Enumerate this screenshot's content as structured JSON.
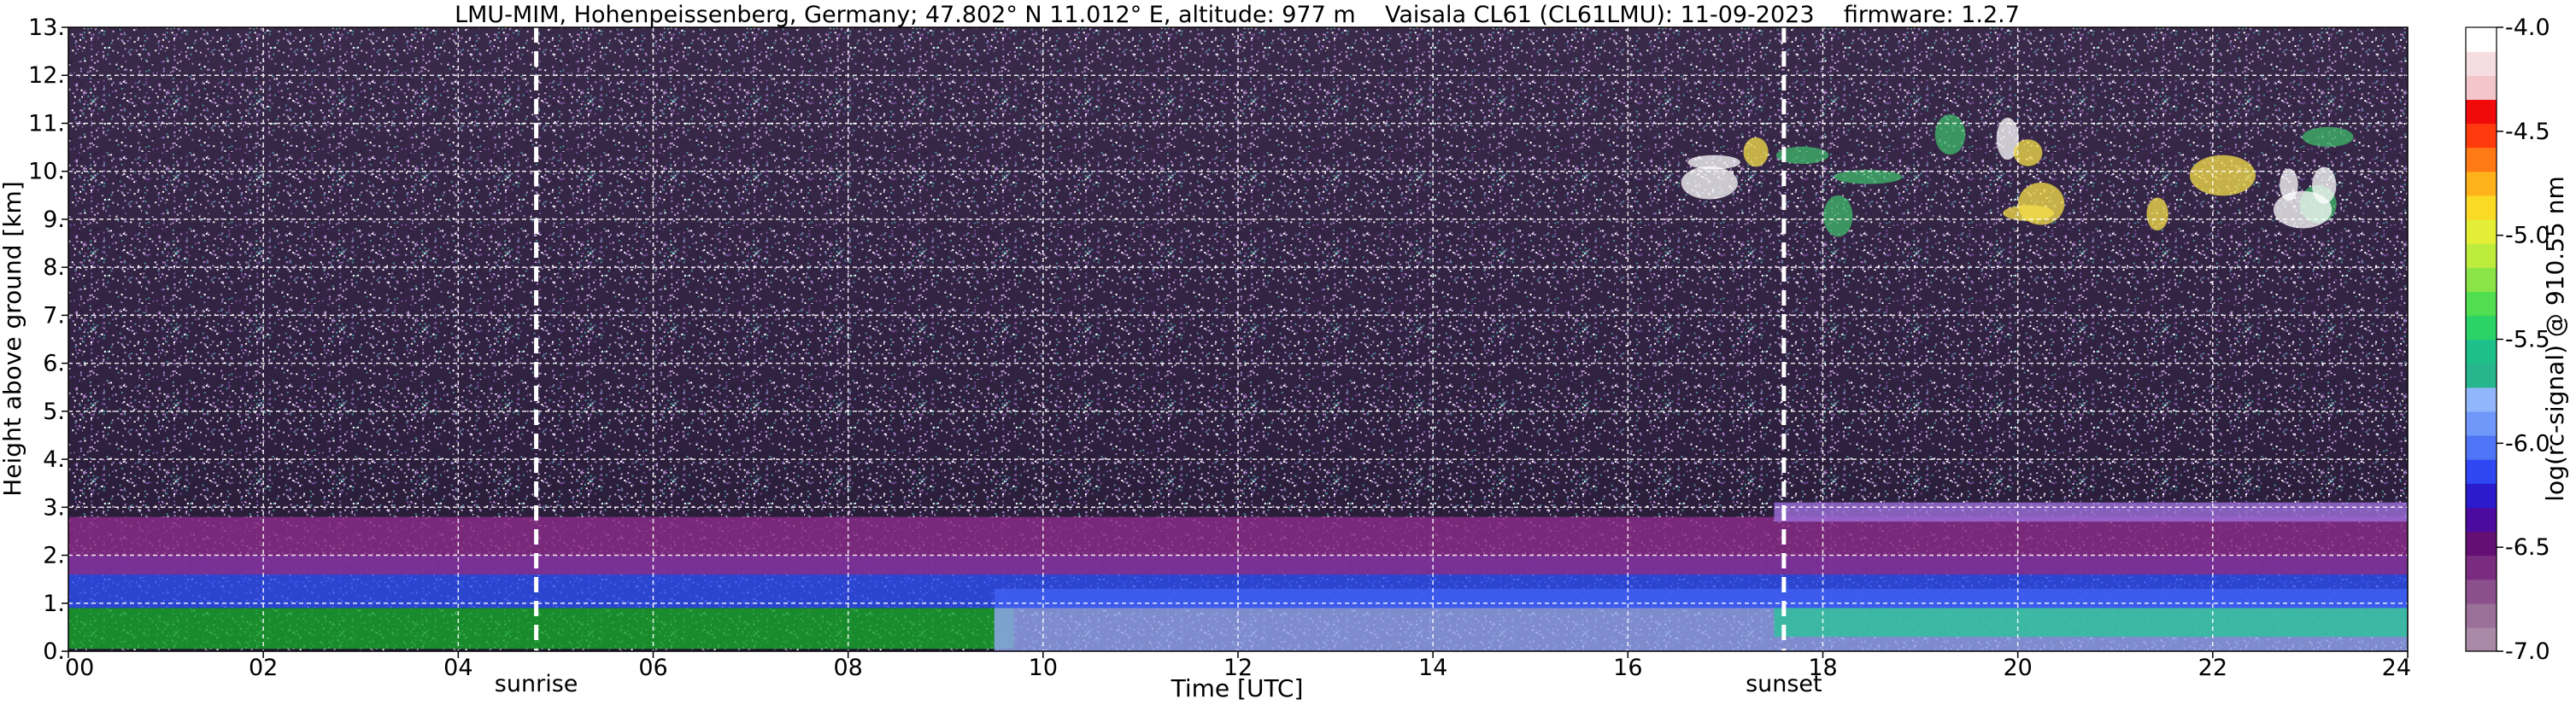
{
  "chart_data": {
    "type": "heatmap",
    "title": "LMU-MIM, Hohenpeissenberg, Germany; 47.802° N 11.012° E, altitude: 977 m    Vaisala CL61 (CL61LMU): 11-09-2023    firmware: 1.2.7",
    "xlabel": "Time [UTC]",
    "ylabel": "Height above ground [km]",
    "xlim": [
      0,
      24
    ],
    "ylim": [
      0,
      13
    ],
    "x_ticks": [
      "00",
      "02",
      "04",
      "06",
      "08",
      "10",
      "12",
      "14",
      "16",
      "18",
      "20",
      "22",
      "24"
    ],
    "y_ticks": [
      "0.",
      "1.",
      "2.",
      "3.",
      "4.",
      "5.",
      "6.",
      "7.",
      "8.",
      "9.",
      "10.",
      "11.",
      "12.",
      "13."
    ],
    "grid": true,
    "markers": [
      {
        "label": "sunrise",
        "x": 4.8
      },
      {
        "label": "sunset",
        "x": 17.6
      }
    ],
    "colorbar": {
      "label": "log(rc-signal) @ 910.55 nm",
      "range": [
        -7.0,
        -4.0
      ],
      "ticks": [
        "-4.0",
        "-4.5",
        "-5.0",
        "-5.5",
        "-6.0",
        "-6.5",
        "-7.0"
      ],
      "colors": [
        "#a98aa6",
        "#9a6f98",
        "#8b4f8c",
        "#7a2c80",
        "#640f73",
        "#4b0aa0",
        "#2a1ccd",
        "#2f47f2",
        "#4f75f7",
        "#6f98fa",
        "#91b6fb",
        "#26b58d",
        "#1ec08a",
        "#2bd266",
        "#51de50",
        "#8ae447",
        "#bdec3c",
        "#e4ee36",
        "#fbda25",
        "#ffb11b",
        "#ff7a14",
        "#ff3b0e",
        "#f10a0a",
        "#f2c6cb",
        "#f6dde1",
        "#ffffff"
      ]
    },
    "layers": [
      {
        "name": "green surface layer",
        "x": [
          0,
          9.7
        ],
        "height_km": [
          0.05,
          0.9
        ],
        "color": "#17a52b"
      },
      {
        "name": "light blue boundary layer",
        "x": [
          9.5,
          24
        ],
        "height_km": [
          0.0,
          1.3
        ],
        "color": "#93a6ef"
      },
      {
        "name": "blue aerosol layer",
        "x": [
          0,
          24
        ],
        "height_km": [
          0.9,
          2.0
        ],
        "color": "#2d4ff1"
      },
      {
        "name": "purple residual layer",
        "x": [
          0,
          24
        ],
        "height_km": [
          1.6,
          2.8
        ],
        "color": "#8a2c87"
      },
      {
        "name": "teal layer evening",
        "x": [
          17.5,
          24
        ],
        "height_km": [
          0.3,
          0.9
        ],
        "color": "#2cc19b"
      },
      {
        "name": "thin elevated layer",
        "x": [
          17.5,
          24
        ],
        "height_km": [
          2.7,
          3.1
        ],
        "color": "#9b6ed8"
      },
      {
        "name": "cirrus cloud",
        "x": [
          16.8,
          24
        ],
        "height_km": [
          9.0,
          10.8
        ],
        "color": "#ffffff"
      }
    ]
  }
}
